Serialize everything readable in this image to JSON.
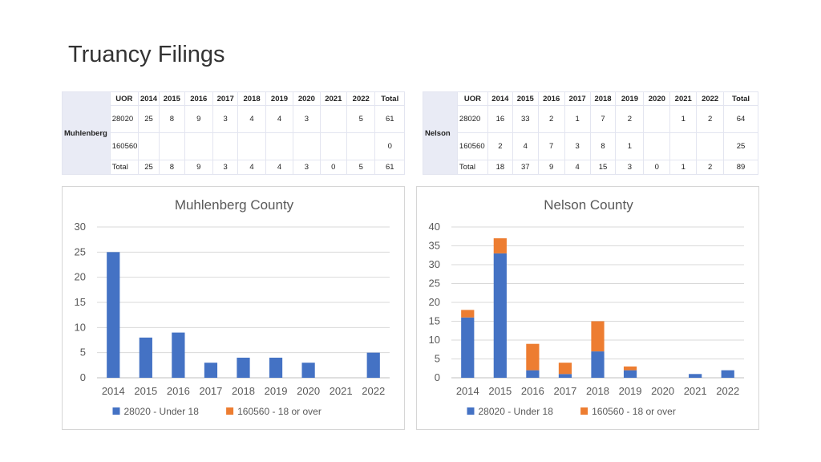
{
  "slide": {
    "title": "Truancy Filings"
  },
  "tables": [
    {
      "county": "Muhlenberg",
      "header": [
        "UOR",
        "2014",
        "2015",
        "2016",
        "2017",
        "2018",
        "2019",
        "2020",
        "2021",
        "2022",
        "Total"
      ],
      "rows": [
        [
          "28020",
          "25",
          "8",
          "9",
          "3",
          "4",
          "4",
          "3",
          "",
          "5",
          "61"
        ],
        [
          "160560",
          "",
          "",
          "",
          "",
          "",
          "",
          "",
          "",
          "",
          "0"
        ],
        [
          "Total",
          "25",
          "8",
          "9",
          "3",
          "4",
          "4",
          "3",
          "0",
          "5",
          "61"
        ]
      ]
    },
    {
      "county": "Nelson",
      "header": [
        "UOR",
        "2014",
        "2015",
        "2016",
        "2017",
        "2018",
        "2019",
        "2020",
        "2021",
        "2022",
        "Total"
      ],
      "rows": [
        [
          "28020",
          "16",
          "33",
          "2",
          "1",
          "7",
          "2",
          "",
          "1",
          "2",
          "64"
        ],
        [
          "160560",
          "2",
          "4",
          "7",
          "3",
          "8",
          "1",
          "",
          "",
          "",
          "25"
        ],
        [
          "Total",
          "18",
          "37",
          "9",
          "4",
          "15",
          "3",
          "0",
          "1",
          "2",
          "89"
        ]
      ]
    }
  ],
  "chart_data": [
    {
      "type": "bar",
      "stacked": true,
      "title": "Muhlenberg County",
      "categories": [
        "2014",
        "2015",
        "2016",
        "2017",
        "2018",
        "2019",
        "2020",
        "2021",
        "2022"
      ],
      "series": [
        {
          "name": "28020 - Under 18",
          "values": [
            25,
            8,
            9,
            3,
            4,
            4,
            3,
            0,
            5
          ],
          "color": "#4472c4"
        },
        {
          "name": "160560 - 18 or over",
          "values": [
            0,
            0,
            0,
            0,
            0,
            0,
            0,
            0,
            0
          ],
          "color": "#ed7d31"
        }
      ],
      "ylim": [
        0,
        30
      ],
      "yticks": [
        0,
        5,
        10,
        15,
        20,
        25,
        30
      ],
      "grid": true,
      "legend": "bottom"
    },
    {
      "type": "bar",
      "stacked": true,
      "title": "Nelson County",
      "categories": [
        "2014",
        "2015",
        "2016",
        "2017",
        "2018",
        "2019",
        "2020",
        "2021",
        "2022"
      ],
      "series": [
        {
          "name": "28020 - Under 18",
          "values": [
            16,
            33,
            2,
            1,
            7,
            2,
            0,
            1,
            2
          ],
          "color": "#4472c4"
        },
        {
          "name": "160560 - 18 or over",
          "values": [
            2,
            4,
            7,
            3,
            8,
            1,
            0,
            0,
            0
          ],
          "color": "#ed7d31"
        }
      ],
      "ylim": [
        0,
        40
      ],
      "yticks": [
        0,
        5,
        10,
        15,
        20,
        25,
        30,
        35,
        40
      ],
      "grid": true,
      "legend": "bottom"
    }
  ]
}
